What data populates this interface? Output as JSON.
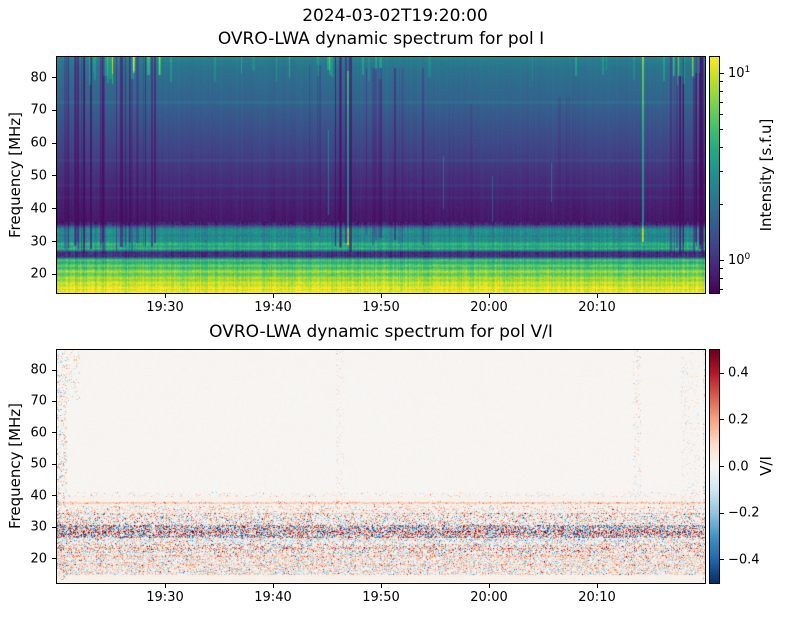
{
  "figure": {
    "suptitle": "2024-03-02T19:20:00",
    "background": "#ffffff",
    "text_color": "#000000"
  },
  "colormaps": {
    "viridis": [
      [
        0,
        "#440154"
      ],
      [
        0.1,
        "#482475"
      ],
      [
        0.2,
        "#414487"
      ],
      [
        0.3,
        "#355f8d"
      ],
      [
        0.4,
        "#2a788e"
      ],
      [
        0.5,
        "#21918c"
      ],
      [
        0.6,
        "#22a884"
      ],
      [
        0.7,
        "#44bf70"
      ],
      [
        0.8,
        "#7ad151"
      ],
      [
        0.9,
        "#bddf26"
      ],
      [
        1,
        "#fde725"
      ]
    ],
    "rdbu_r": [
      [
        0,
        "#053061"
      ],
      [
        0.1,
        "#2166ac"
      ],
      [
        0.2,
        "#4393c3"
      ],
      [
        0.3,
        "#92c5de"
      ],
      [
        0.4,
        "#d1e5f0"
      ],
      [
        0.5,
        "#f7f7f5"
      ],
      [
        0.6,
        "#fddbc7"
      ],
      [
        0.7,
        "#f4a582"
      ],
      [
        0.8,
        "#d6604d"
      ],
      [
        0.9,
        "#b2182b"
      ],
      [
        1,
        "#67001f"
      ]
    ]
  },
  "chart_data": [
    {
      "id": "polI",
      "type": "heatmap",
      "title": "OVRO-LWA dynamic spectrum for pol I",
      "ylabel": "Frequency [MHz]",
      "x_axis": {
        "start": "19:20",
        "end": "20:20",
        "total_minutes": 60,
        "ticks": [
          {
            "label": "19:30",
            "minutes": 10
          },
          {
            "label": "19:40",
            "minutes": 20
          },
          {
            "label": "19:50",
            "minutes": 30
          },
          {
            "label": "20:00",
            "minutes": 40
          },
          {
            "label": "20:10",
            "minutes": 50
          }
        ]
      },
      "y_axis": {
        "min": 14.3,
        "max": 86.3,
        "ticks": [
          {
            "label": "20",
            "value": 20
          },
          {
            "label": "30",
            "value": 30
          },
          {
            "label": "40",
            "value": 40
          },
          {
            "label": "50",
            "value": 50
          },
          {
            "label": "60",
            "value": 60
          },
          {
            "label": "70",
            "value": 70
          },
          {
            "label": "80",
            "value": 80
          }
        ]
      },
      "colorbar": {
        "label": "Intensity [s.f.u]",
        "scale": "log",
        "vmin": 0.67,
        "vmax": 12.2,
        "colormap": "viridis",
        "major_ticks": [
          {
            "mantissa": "10",
            "exponent": "1",
            "value": 10
          },
          {
            "mantissa": "10",
            "exponent": "0",
            "value": 1
          }
        ],
        "minor_ticks": [
          9,
          8,
          7,
          6,
          5,
          4,
          3,
          2,
          0.9,
          0.8,
          0.7
        ]
      },
      "render": {
        "kind": "intensity",
        "colormap": "viridis",
        "profile": [
          [
            86.3,
            0.46
          ],
          [
            85.2,
            0.42
          ],
          [
            83,
            0.38
          ],
          [
            80,
            0.36
          ],
          [
            77,
            0.34
          ],
          [
            74,
            0.325
          ],
          [
            71,
            0.3
          ],
          [
            68,
            0.275
          ],
          [
            64,
            0.245
          ],
          [
            60,
            0.215
          ],
          [
            56,
            0.185
          ],
          [
            52,
            0.155
          ],
          [
            48,
            0.125
          ],
          [
            44,
            0.1
          ],
          [
            40,
            0.082
          ],
          [
            38,
            0.072
          ],
          [
            36.2,
            0.065
          ],
          [
            35.2,
            0.11
          ],
          [
            34.5,
            0.3
          ],
          [
            33.8,
            0.47
          ],
          [
            33,
            0.5
          ],
          [
            32.2,
            0.46
          ],
          [
            31.6,
            0.43
          ],
          [
            31,
            0.5
          ],
          [
            30.4,
            0.45
          ],
          [
            29.8,
            0.52
          ],
          [
            29.3,
            0.68
          ],
          [
            28.8,
            0.6
          ],
          [
            28.3,
            0.56
          ],
          [
            27.8,
            0.68
          ],
          [
            27.3,
            0.44
          ],
          [
            26.9,
            0.18
          ],
          [
            26.5,
            0.1
          ],
          [
            26,
            0.15
          ],
          [
            25.5,
            0.1
          ],
          [
            25,
            0.32
          ],
          [
            24.7,
            0.58
          ],
          [
            24.3,
            0.74
          ],
          [
            23.9,
            0.65
          ],
          [
            23.4,
            0.6
          ],
          [
            23,
            0.7
          ],
          [
            22.6,
            0.8
          ],
          [
            22.2,
            0.7
          ],
          [
            21.8,
            0.66
          ],
          [
            21.3,
            0.78
          ],
          [
            20.8,
            0.88
          ],
          [
            20.3,
            0.76
          ],
          [
            19.8,
            0.72
          ],
          [
            19.3,
            0.82
          ],
          [
            18.8,
            0.9
          ],
          [
            18.3,
            0.8
          ],
          [
            17.8,
            0.88
          ],
          [
            17.3,
            0.95
          ],
          [
            16.8,
            0.88
          ],
          [
            16.3,
            0.93
          ],
          [
            15.8,
            1.0
          ],
          [
            15.3,
            0.92
          ],
          [
            14.8,
            0.97
          ],
          [
            14.3,
            1.0
          ]
        ],
        "hlines": [
          {
            "f": 72.4,
            "dt": 0.05
          },
          {
            "f": 54.6,
            "dt": 0.035
          },
          {
            "f": 47.0,
            "dt": 0.03
          },
          {
            "f": 43.5,
            "dt": 0.025
          }
        ],
        "streak_clusters": [
          {
            "x0": 0.004,
            "x1": 0.175,
            "count": 26,
            "type": "dark",
            "strength": 0.5,
            "fmin": 28,
            "fmax": 86.3,
            "seed": 101
          },
          {
            "x0": 0.004,
            "x1": 0.17,
            "count": 12,
            "type": "bright",
            "strength": 0.2,
            "fmin": 79.5,
            "fmax": 86.3,
            "seed": 102
          },
          {
            "x0": 0.03,
            "x1": 0.98,
            "count": 26,
            "type": "bright",
            "strength": 0.13,
            "fmin": 80.5,
            "fmax": 86.3,
            "seed": 103
          },
          {
            "x0": 0.425,
            "x1": 0.452,
            "count": 5,
            "type": "dark",
            "strength": 0.55,
            "fmin": 28,
            "fmax": 86.3,
            "seed": 104
          },
          {
            "x0": 0.385,
            "x1": 0.42,
            "count": 4,
            "type": "dark",
            "strength": 0.22,
            "fmin": 32,
            "fmax": 84,
            "seed": 105
          },
          {
            "x0": 0.475,
            "x1": 0.575,
            "count": 10,
            "type": "dark",
            "strength": 0.38,
            "fmin": 30,
            "fmax": 83,
            "seed": 106
          },
          {
            "x0": 0.6,
            "x1": 0.64,
            "count": 3,
            "type": "dark",
            "strength": 0.22,
            "fmin": 32,
            "fmax": 72,
            "seed": 107
          },
          {
            "x0": 0.77,
            "x1": 0.81,
            "count": 3,
            "type": "dark",
            "strength": 0.2,
            "fmin": 34,
            "fmax": 74,
            "seed": 108
          },
          {
            "x0": 0.942,
            "x1": 0.999,
            "count": 18,
            "type": "dark",
            "strength": 0.48,
            "fmin": 28,
            "fmax": 86.3,
            "seed": 109
          },
          {
            "x0": 0.945,
            "x1": 0.995,
            "count": 9,
            "type": "bright",
            "strength": 0.22,
            "fmin": 79.5,
            "fmax": 86.3,
            "seed": 110
          }
        ],
        "bright_lines": [
          {
            "x": 0.447,
            "w": 2,
            "fmin": 29,
            "fmax": 82,
            "strength": 0.3
          },
          {
            "x": 0.418,
            "w": 1,
            "fmin": 38,
            "fmax": 64,
            "strength": 0.22
          },
          {
            "x": 0.903,
            "w": 2,
            "fmin": 30,
            "fmax": 86.3,
            "strength": 0.38
          },
          {
            "x": 0.595,
            "w": 1,
            "fmin": 40,
            "fmax": 56,
            "strength": 0.18
          },
          {
            "x": 0.762,
            "w": 1,
            "fmin": 42,
            "fmax": 54,
            "strength": 0.2
          },
          {
            "x": 0.672,
            "w": 1,
            "fmin": 36,
            "fmax": 50,
            "strength": 0.15
          }
        ],
        "noise": {
          "col_hi": 0.018,
          "col_lo": 0.06,
          "pix_hi": 0.012,
          "pix_lo": 0.05,
          "band_split": 36,
          "seed": 7
        }
      }
    },
    {
      "id": "polVI",
      "type": "heatmap",
      "title": "OVRO-LWA dynamic spectrum for pol V/I",
      "ylabel": "Frequency [MHz]",
      "x_axis": {
        "start": "19:20",
        "end": "20:20",
        "total_minutes": 60,
        "ticks": [
          {
            "label": "19:30",
            "minutes": 10
          },
          {
            "label": "19:40",
            "minutes": 20
          },
          {
            "label": "19:50",
            "minutes": 30
          },
          {
            "label": "20:00",
            "minutes": 40
          },
          {
            "label": "20:10",
            "minutes": 50
          }
        ]
      },
      "y_axis": {
        "min": 12.2,
        "max": 86.4,
        "ticks": [
          {
            "label": "20",
            "value": 20
          },
          {
            "label": "30",
            "value": 30
          },
          {
            "label": "40",
            "value": 40
          },
          {
            "label": "50",
            "value": 50
          },
          {
            "label": "60",
            "value": 60
          },
          {
            "label": "70",
            "value": 70
          },
          {
            "label": "80",
            "value": 80
          }
        ]
      },
      "colorbar": {
        "label": "V/I",
        "scale": "linear",
        "vmin": -0.5,
        "vmax": 0.5,
        "colormap": "rdbu_r",
        "ticks": [
          {
            "label": "0.4",
            "value": 0.4
          },
          {
            "label": "0.2",
            "value": 0.2
          },
          {
            "label": "0.0",
            "value": 0.0
          },
          {
            "label": "−0.2",
            "value": -0.2
          },
          {
            "label": "−0.4",
            "value": -0.4
          }
        ]
      },
      "render": {
        "kind": "diverging",
        "colormap": "rdbu_r",
        "background_bias": 0.02,
        "speckle_bands": [
          {
            "fmin": 34.6,
            "fmax": 36.6,
            "density": 0.4,
            "scale": 0.2,
            "bias": 0.02,
            "seed": 201
          },
          {
            "fmin": 30.6,
            "fmax": 34.6,
            "density": 0.55,
            "scale": 0.28,
            "bias": 0.0,
            "seed": 202
          },
          {
            "fmin": 26.6,
            "fmax": 30.6,
            "density": 0.9,
            "scale": 0.42,
            "bias": -0.02,
            "seed": 203
          },
          {
            "fmin": 24.6,
            "fmax": 26.6,
            "density": 0.55,
            "scale": 0.25,
            "bias": 0.0,
            "seed": 204
          },
          {
            "fmin": 21.6,
            "fmax": 24.6,
            "density": 0.65,
            "scale": 0.3,
            "bias": 0.0,
            "seed": 205
          },
          {
            "fmin": 14.6,
            "fmax": 21.6,
            "density": 0.7,
            "scale": 0.22,
            "bias": 0.0,
            "seed": 206
          },
          {
            "fmin": 39.6,
            "fmax": 41.3,
            "density": 0.18,
            "scale": 0.16,
            "bias": 0.0,
            "seed": 207
          },
          {
            "fmin": 36.6,
            "fmax": 38.2,
            "density": 0.25,
            "scale": 0.14,
            "bias": 0.03,
            "seed": 208
          }
        ],
        "speckle_columns": [
          {
            "x": 0.0,
            "w": 0.014,
            "fmin": 13,
            "fmax": 86.4,
            "density": 0.3,
            "scale": 0.25,
            "seed": 211
          },
          {
            "x": 0.015,
            "w": 0.02,
            "fmin": 70,
            "fmax": 86.4,
            "density": 0.18,
            "scale": 0.2,
            "seed": 212
          },
          {
            "x": 0.43,
            "w": 0.012,
            "fmin": 38,
            "fmax": 86.4,
            "density": 0.12,
            "scale": 0.15,
            "seed": 213
          },
          {
            "x": 0.888,
            "w": 0.012,
            "fmin": 38,
            "fmax": 86.4,
            "density": 0.15,
            "scale": 0.18,
            "seed": 214
          },
          {
            "x": 0.962,
            "w": 0.03,
            "fmin": 38,
            "fmax": 86.4,
            "density": 0.12,
            "scale": 0.15,
            "seed": 215
          },
          {
            "x": 0.996,
            "w": 0.004,
            "fmin": 13,
            "fmax": 86.4,
            "density": 0.3,
            "scale": 0.2,
            "seed": 216
          }
        ],
        "hlines": [
          {
            "f": 37.6,
            "amp": 0.1
          },
          {
            "f": 34.3,
            "amp": 0.08
          },
          {
            "f": 28.4,
            "amp": 0.14
          },
          {
            "f": 25.8,
            "amp": -0.07
          },
          {
            "f": 23.2,
            "amp": 0.1
          },
          {
            "f": 20.9,
            "amp": 0.08
          },
          {
            "f": 17.9,
            "amp": 0.06
          }
        ],
        "noise": {
          "pix": 0.012,
          "seed": 9
        }
      }
    }
  ]
}
